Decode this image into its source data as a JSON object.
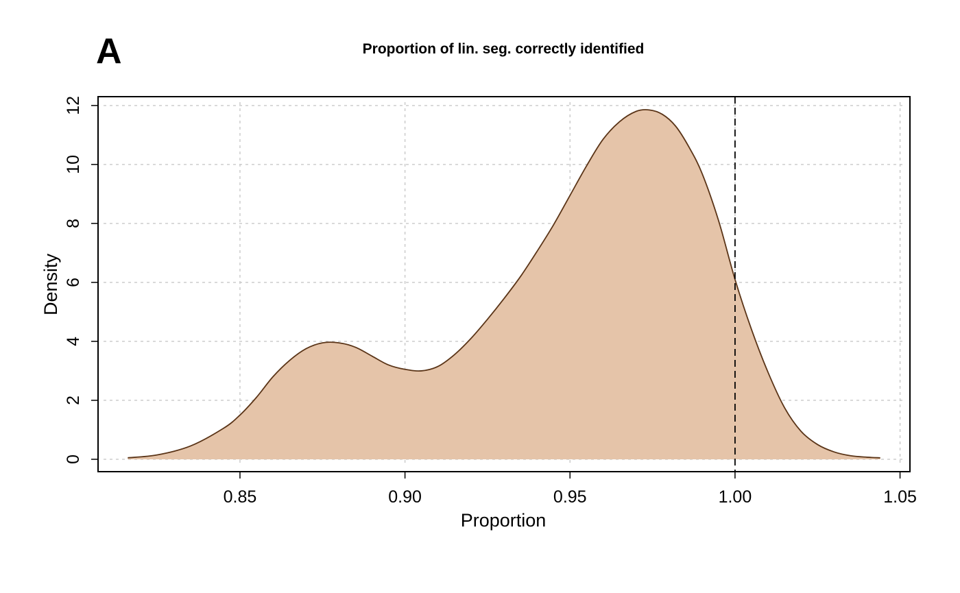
{
  "panel_label": "A",
  "chart_data": {
    "type": "area",
    "title": "Proportion of lin. seg. correctly identified",
    "xlabel": "Proportion",
    "ylabel": "Density",
    "xlim": [
      0.807,
      1.053
    ],
    "ylim": [
      -0.42,
      12.3
    ],
    "x_ticks": [
      0.85,
      0.9,
      0.95,
      1.0,
      1.05
    ],
    "x_tick_labels": [
      "0.85",
      "0.90",
      "0.95",
      "1.00",
      "1.05"
    ],
    "y_ticks": [
      0,
      2,
      4,
      6,
      8,
      10,
      12
    ],
    "y_tick_labels": [
      "0",
      "2",
      "4",
      "6",
      "8",
      "10",
      "12"
    ],
    "grid": true,
    "reference_line": {
      "x": 1.0,
      "style": "dashed"
    },
    "series": [
      {
        "x": [
          0.816,
          0.825,
          0.835,
          0.845,
          0.85,
          0.855,
          0.86,
          0.865,
          0.87,
          0.875,
          0.88,
          0.885,
          0.89,
          0.895,
          0.9,
          0.905,
          0.91,
          0.915,
          0.92,
          0.925,
          0.93,
          0.935,
          0.94,
          0.945,
          0.95,
          0.955,
          0.96,
          0.965,
          0.97,
          0.974,
          0.978,
          0.982,
          0.986,
          0.99,
          0.995,
          1.0,
          1.005,
          1.01,
          1.015,
          1.02,
          1.025,
          1.03,
          1.035,
          1.04,
          1.044
        ],
        "y": [
          0.05,
          0.15,
          0.45,
          1.05,
          1.5,
          2.1,
          2.8,
          3.35,
          3.75,
          3.95,
          3.95,
          3.8,
          3.5,
          3.2,
          3.05,
          3.0,
          3.15,
          3.55,
          4.1,
          4.75,
          5.45,
          6.2,
          7.05,
          7.95,
          8.95,
          9.95,
          10.85,
          11.45,
          11.8,
          11.85,
          11.7,
          11.3,
          10.6,
          9.7,
          8.1,
          6.1,
          4.4,
          2.95,
          1.75,
          0.95,
          0.5,
          0.25,
          0.12,
          0.07,
          0.05
        ]
      }
    ],
    "fill_color": "#e5c4a9",
    "line_color": "#5a3417"
  }
}
